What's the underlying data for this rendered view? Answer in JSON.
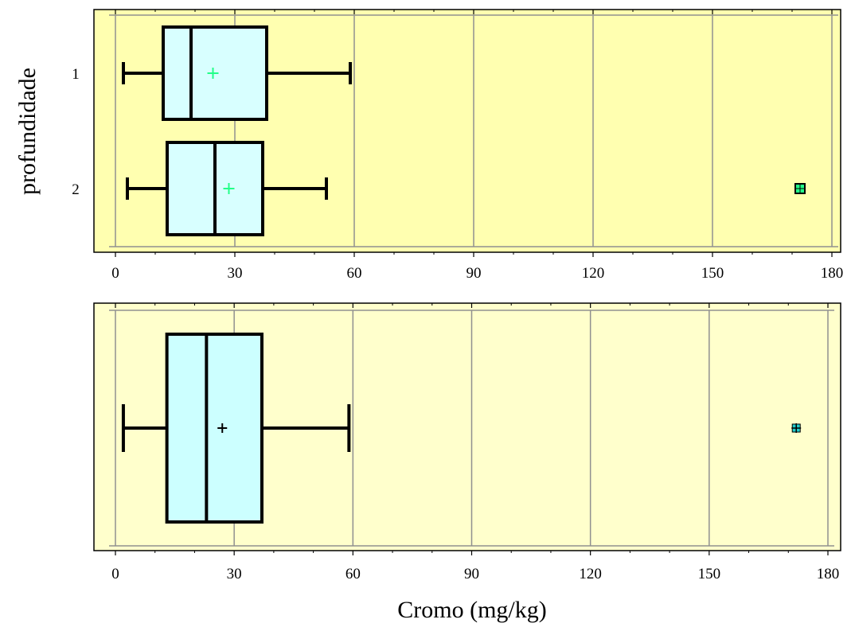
{
  "chart_data": [
    {
      "type": "boxplot",
      "orientation": "horizontal",
      "ylabel": "profundidade",
      "xlim": [
        0,
        180
      ],
      "xticks": [
        0,
        30,
        60,
        90,
        120,
        150,
        180
      ],
      "grid": true,
      "colors": {
        "plot_bg": "#ffffb0",
        "box_fill": "#d8ffff",
        "mean_marker": "#22ff88",
        "outlier_fill": "#22ff88"
      },
      "series": [
        {
          "name": "1",
          "whisker_low": 2,
          "q1": 12,
          "median": 19,
          "q3": 38,
          "whisker_high": 59,
          "mean": 24.5,
          "outliers": []
        },
        {
          "name": "2",
          "whisker_low": 3,
          "q1": 13,
          "median": 25,
          "q3": 37,
          "whisker_high": 53,
          "mean": 28.5,
          "outliers": [
            172
          ]
        }
      ]
    },
    {
      "type": "boxplot",
      "orientation": "horizontal",
      "xlabel": "Cromo (mg/kg)",
      "xlim": [
        0,
        180
      ],
      "xticks": [
        0,
        30,
        60,
        90,
        120,
        150,
        180
      ],
      "grid": true,
      "colors": {
        "plot_bg": "#ffffcc",
        "box_fill": "#ccffff",
        "mean_marker": "#000000",
        "outlier_marker": "#22cccc"
      },
      "series": [
        {
          "whisker_low": 2,
          "q1": 13,
          "median": 23,
          "q3": 37,
          "whisker_high": 59,
          "mean": 27,
          "outliers": [
            172
          ]
        }
      ]
    }
  ]
}
